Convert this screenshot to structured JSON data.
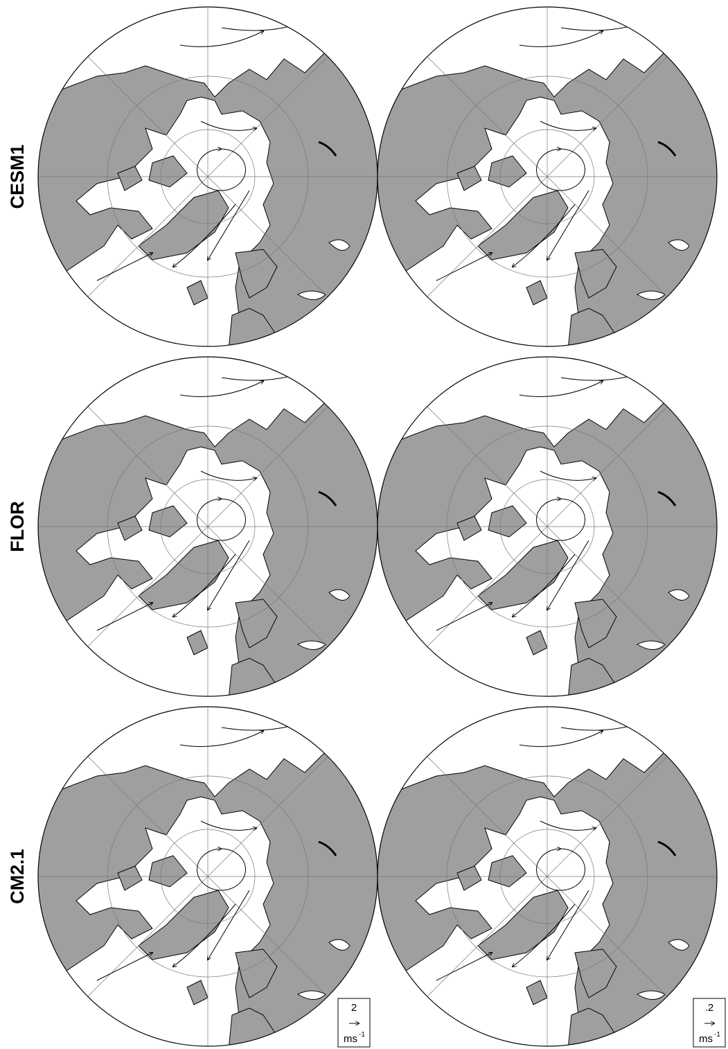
{
  "rows": [
    {
      "label": "CESM1"
    },
    {
      "label": "FLOR"
    },
    {
      "label": "CM2.1"
    }
  ],
  "legends": [
    {
      "value": "2",
      "unit": "ms",
      "exponent": "-1"
    },
    {
      "value": ".2",
      "unit": "ms",
      "exponent": "-1"
    }
  ]
}
